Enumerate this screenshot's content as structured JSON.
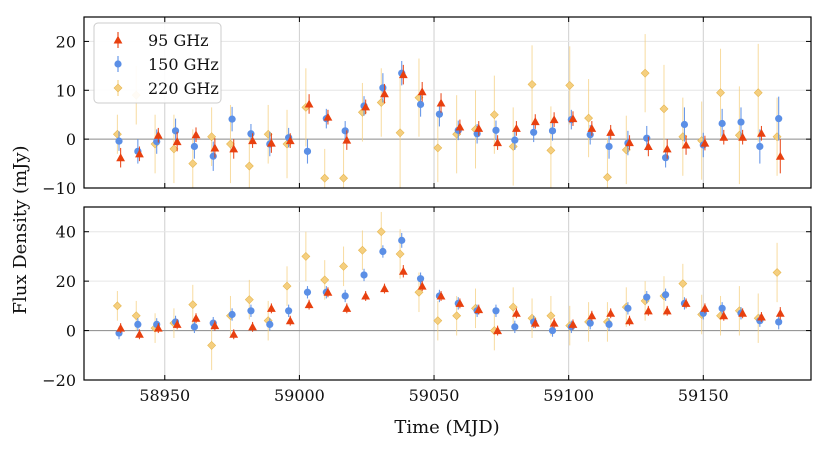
{
  "chart_data": [
    {
      "type": "scatter",
      "panel": "top",
      "title": "",
      "xlabel": "Time (MJD)",
      "ylabel": "Flux Density (mJy)",
      "xlim": [
        58920,
        59190
      ],
      "ylim": [
        -10,
        25
      ],
      "xticks": [
        58950,
        59000,
        59050,
        59100,
        59150
      ],
      "xtick_labels": [
        "58950",
        "59000",
        "59050",
        "59100",
        "59150"
      ],
      "yticks": [
        -10,
        0,
        10,
        20
      ],
      "ytick_labels": [
        "−10",
        "0",
        "10",
        "20"
      ],
      "grid": true,
      "zero_line": true,
      "legend": {
        "position": "top-left",
        "entries": [
          "95 GHz",
          "150 GHz",
          "220 GHz"
        ]
      },
      "series": [
        {
          "name": "95 GHz",
          "color": "#e8400f",
          "marker": "triangle",
          "x": [
            58933,
            58940,
            58947,
            58954,
            58961,
            58968,
            58975,
            58982,
            58989,
            58996,
            59003,
            59010,
            59017,
            59024,
            59031,
            59038,
            59045,
            59052,
            59059,
            59066,
            59073,
            59080,
            59087,
            59094,
            59101,
            59108,
            59115,
            59122,
            59129,
            59136,
            59143,
            59150,
            59157,
            59164,
            59171,
            59178
          ],
          "y": [
            -3.8,
            -3,
            0.8,
            -0.5,
            0.9,
            -1.8,
            -2,
            -0.3,
            -0.8,
            -0.3,
            7.2,
            4.5,
            -0.2,
            6.6,
            9.3,
            13.2,
            9.7,
            7.4,
            2.5,
            2.2,
            -0.7,
            2.2,
            3.6,
            4,
            4.2,
            2.2,
            1.4,
            -0.7,
            -1.5,
            -2,
            -1.2,
            -0.8,
            0.4,
            0.4,
            1.2,
            -3.5
          ],
          "err": [
            2,
            1.5,
            1.5,
            2,
            1.5,
            2,
            2,
            1.5,
            2,
            1.5,
            2,
            1.5,
            2,
            1.5,
            2,
            2,
            2,
            2,
            1.5,
            1.5,
            1.5,
            1.5,
            1.5,
            1.5,
            1.5,
            1.5,
            1.5,
            1.5,
            2,
            2,
            2,
            1.5,
            1.5,
            1.5,
            1.5,
            3.5
          ]
        },
        {
          "name": "150 GHz",
          "color": "#5b8fe6",
          "marker": "circle",
          "x": [
            58933,
            58940,
            58947,
            58954,
            58961,
            58968,
            58975,
            58982,
            58989,
            58996,
            59003,
            59010,
            59017,
            59024,
            59031,
            59038,
            59045,
            59052,
            59059,
            59066,
            59073,
            59080,
            59087,
            59094,
            59101,
            59108,
            59115,
            59122,
            59129,
            59136,
            59143,
            59150,
            59157,
            59164,
            59171,
            59178
          ],
          "y": [
            -0.4,
            -2.5,
            -0.5,
            1.7,
            -1.5,
            -3.5,
            4.1,
            1.1,
            -1,
            0.3,
            -2.5,
            4.2,
            1.7,
            6.8,
            10.5,
            13.5,
            7.1,
            5.1,
            1.8,
            1.1,
            1.8,
            -0.2,
            1.4,
            1.7,
            4,
            0.9,
            -1.5,
            -0.8,
            0.2,
            -3.8,
            3,
            -1.2,
            3.2,
            3.5,
            -1.5,
            4.2
          ],
          "err": [
            2,
            2.5,
            2.5,
            2.5,
            2.5,
            3,
            2.5,
            2,
            2.5,
            2,
            2.5,
            2,
            2,
            2,
            3,
            2.5,
            2.5,
            2.5,
            2,
            2,
            2,
            2,
            2,
            2,
            2,
            2,
            2.5,
            2.5,
            2.5,
            2,
            3.5,
            2.5,
            3,
            3,
            3.5,
            4.5
          ]
        },
        {
          "name": "220 GHz",
          "color": "#f5cf7f",
          "marker": "diamond",
          "x": [
            58933,
            58940,
            58947,
            58954,
            58961,
            58968,
            58975,
            58982,
            58989,
            58996,
            59003,
            59010,
            59017,
            59024,
            59031,
            59038,
            59045,
            59052,
            59059,
            59066,
            59073,
            59080,
            59087,
            59094,
            59101,
            59108,
            59115,
            59122,
            59129,
            59136,
            59143,
            59150,
            59157,
            59164,
            59171,
            59178
          ],
          "y": [
            1,
            9,
            -1,
            -2,
            -5,
            0.5,
            -1,
            -5.5,
            1,
            -1,
            6.5,
            -8,
            -8,
            5.5,
            7.5,
            1.3,
            8.5,
            -1.8,
            1,
            2,
            5,
            -1.5,
            11.2,
            -2.3,
            11,
            4.3,
            -7.8,
            -2.2,
            13.5,
            6.2,
            0.5,
            -0.3,
            9.5,
            0.8,
            9.5,
            0.5
          ],
          "err": [
            4,
            6,
            6,
            7,
            7,
            6,
            8,
            7,
            6,
            7,
            8,
            6,
            7,
            6,
            7,
            12,
            8,
            7,
            8,
            8,
            8,
            8,
            8,
            9,
            8,
            8,
            8,
            7,
            8,
            9,
            8,
            8,
            9,
            10,
            10,
            8
          ]
        }
      ]
    },
    {
      "type": "scatter",
      "panel": "bottom",
      "title": "",
      "xlabel": "Time (MJD)",
      "ylabel": "Flux Density (mJy)",
      "xlim": [
        58920,
        59190
      ],
      "ylim": [
        -20,
        50
      ],
      "xticks": [
        58950,
        59000,
        59050,
        59100,
        59150
      ],
      "xtick_labels": [
        "58950",
        "59000",
        "59050",
        "59100",
        "59150"
      ],
      "yticks": [
        -20,
        0,
        20,
        40
      ],
      "ytick_labels": [
        "−20",
        "0",
        "20",
        "40"
      ],
      "grid": true,
      "zero_line": true,
      "series": [
        {
          "name": "95 GHz",
          "color": "#e8400f",
          "marker": "triangle",
          "x": [
            58933,
            58940,
            58947,
            58954,
            58961,
            58968,
            58975,
            58982,
            58989,
            58996,
            59003,
            59010,
            59017,
            59024,
            59031,
            59038,
            59045,
            59052,
            59059,
            59066,
            59073,
            59080,
            59087,
            59094,
            59101,
            59108,
            59115,
            59122,
            59129,
            59136,
            59143,
            59150,
            59157,
            59164,
            59171,
            59178
          ],
          "y": [
            1,
            -1.5,
            1,
            2.5,
            5,
            2,
            -1.5,
            1.5,
            9,
            4,
            10.5,
            15.5,
            9,
            14,
            17,
            24,
            18,
            14,
            11,
            8.5,
            0,
            7,
            3,
            3,
            2.5,
            6,
            7,
            4,
            8,
            8,
            11,
            9,
            6,
            7,
            5.5,
            7
          ],
          "err": [
            2,
            2,
            2,
            2,
            2,
            2,
            2,
            2,
            2,
            2,
            2,
            2,
            2,
            2,
            2,
            2.5,
            2,
            2,
            2,
            2,
            2,
            2,
            2,
            2,
            2,
            2,
            2,
            2,
            2,
            2,
            2,
            2,
            2,
            2,
            2,
            2.5
          ]
        },
        {
          "name": "150 GHz",
          "color": "#5b8fe6",
          "marker": "circle",
          "x": [
            58933,
            58940,
            58947,
            58954,
            58961,
            58968,
            58975,
            58982,
            58989,
            58996,
            59003,
            59010,
            59017,
            59024,
            59031,
            59038,
            59045,
            59052,
            59059,
            59066,
            59073,
            59080,
            59087,
            59094,
            59101,
            59108,
            59115,
            59122,
            59129,
            59136,
            59143,
            59150,
            59157,
            59164,
            59171,
            59178
          ],
          "y": [
            -1,
            2.5,
            2.5,
            3.5,
            1.5,
            3,
            6.5,
            8,
            2.5,
            8,
            15.5,
            15.5,
            14,
            22.5,
            32,
            36.5,
            21,
            14,
            11,
            8,
            8,
            1.5,
            3.5,
            0,
            1.5,
            3,
            2.5,
            9,
            13.5,
            14.5,
            11,
            7,
            9,
            7,
            4,
            3.5
          ],
          "err": [
            2.5,
            2.5,
            2.5,
            2.5,
            2.5,
            2.5,
            2.5,
            2.5,
            2.5,
            2.5,
            2.5,
            2.5,
            2.5,
            2.5,
            2.5,
            3,
            2.5,
            2.5,
            2.5,
            2.5,
            2.5,
            2.5,
            2.5,
            2.5,
            2.5,
            2.5,
            2.5,
            2.5,
            2.5,
            2.5,
            2.5,
            2.5,
            2.5,
            2.5,
            2.5,
            3
          ]
        },
        {
          "name": "220 GHz",
          "color": "#f5cf7f",
          "marker": "diamond",
          "x": [
            58933,
            58940,
            58947,
            58954,
            58961,
            58968,
            58975,
            58982,
            58989,
            58996,
            59003,
            59010,
            59017,
            59024,
            59031,
            59038,
            59045,
            59052,
            59059,
            59066,
            59073,
            59080,
            59087,
            59094,
            59101,
            59108,
            59115,
            59122,
            59129,
            59136,
            59143,
            59150,
            59157,
            59164,
            59171,
            59178
          ],
          "y": [
            10,
            6,
            1,
            3,
            10.5,
            -6,
            6,
            12.5,
            4,
            18,
            30,
            20.5,
            26,
            32.5,
            40,
            31,
            15.5,
            4,
            6,
            9,
            0,
            9.5,
            5,
            6,
            2,
            3.5,
            3.5,
            9.5,
            12,
            14,
            19,
            6.5,
            6,
            8,
            5,
            23.5
          ],
          "err": [
            6,
            6,
            6,
            6,
            8,
            10,
            8,
            8,
            8,
            8,
            10,
            8,
            8,
            8,
            8,
            10,
            8,
            8,
            8,
            8,
            8,
            8,
            8,
            8,
            8,
            8,
            8,
            8,
            8,
            8,
            8,
            8,
            8,
            10,
            10,
            12
          ]
        }
      ]
    }
  ]
}
